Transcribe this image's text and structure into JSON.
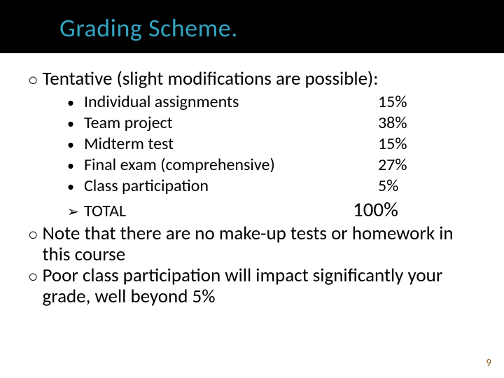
{
  "colors": {
    "title": "#33a3bf",
    "header_bg": "#000000",
    "body_bg": "#ffffff",
    "text": "#000000",
    "page_num": "#8a5a2a"
  },
  "title": "Grading Scheme.",
  "lead": "Tentative (slight modifications are possible):",
  "items": [
    {
      "label": "Individual assignments",
      "pct": "15%"
    },
    {
      "label": "Team project",
      "pct": "38%"
    },
    {
      "label": "Midterm test",
      "pct": "15%"
    },
    {
      "label": "Final exam (comprehensive)",
      "pct": "27%"
    },
    {
      "label": "Class participation",
      "pct": "5%"
    }
  ],
  "total": {
    "label": "TOTAL",
    "pct": "100%"
  },
  "notes": [
    "Note that there are no make-up tests or homework in this course",
    "Poor class participation will impact significantly your grade, well beyond 5%"
  ],
  "page": "9",
  "bullets": {
    "circle": "○",
    "dot": "•",
    "chevron": "➢"
  }
}
